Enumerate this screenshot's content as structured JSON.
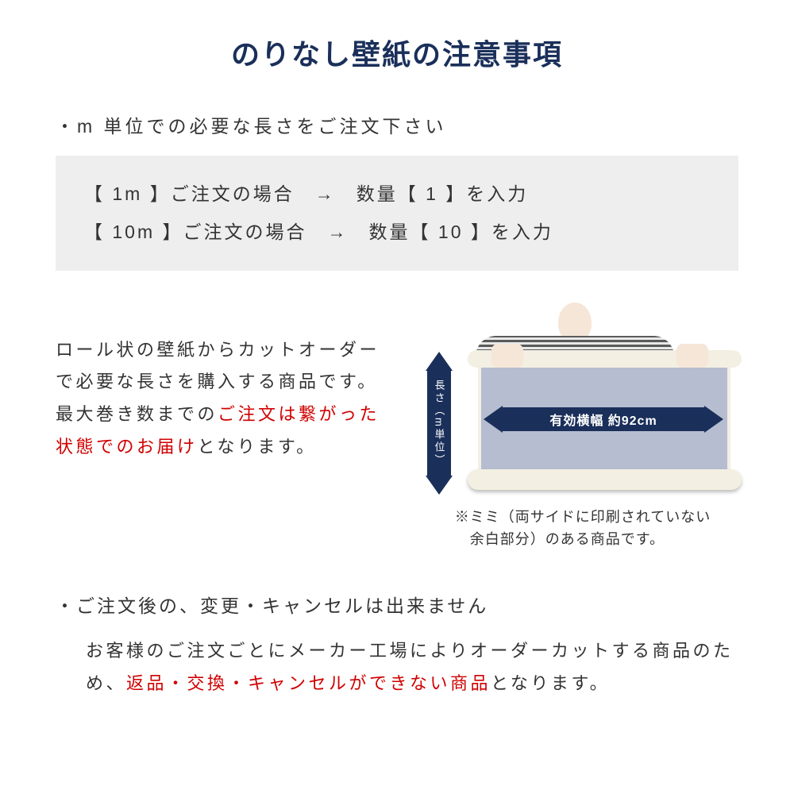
{
  "colors": {
    "title_color": "#1a2f5a",
    "text_color": "#333333",
    "red": "#d00000",
    "box_bg": "#eeeeee",
    "arrow_color": "#1a2f5a",
    "sheet_color": "#b6bdd1",
    "roll_color": "#f3efe2"
  },
  "title": "のりなし壁紙の注意事項",
  "bullet1": "・m 単位での必要な長さをご注文下さい",
  "examples": {
    "row1": "【 1m 】ご注文の場合　→　数量【 1 】を入力",
    "row2": "【 10m 】ご注文の場合　→　数量【 10 】を入力"
  },
  "description": {
    "part1": "ロール状の壁紙からカットオーダーで必要な長さを購入する商品です。最大巻き数までの",
    "red": "ご注文は繋がった状態でのお届け",
    "part2": "となります。"
  },
  "diagram": {
    "v_label": "長さ（m単位）",
    "h_label": "有効横幅 約92cm",
    "note": "※ミミ（両サイドに印刷されていない\n　余白部分）のある商品です。"
  },
  "bullet2": "・ご注文後の、変更・キャンセルは出来ません",
  "rule_body": {
    "part1": "お客様のご注文ごとにメーカー工場によりオーダーカットする商品のため、",
    "red": "返品・交換・キャンセルができない商品",
    "part2": "となります。"
  }
}
